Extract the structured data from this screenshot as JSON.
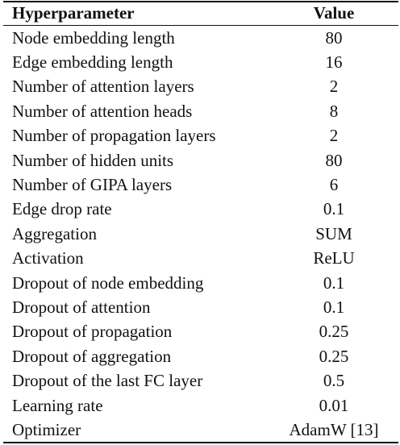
{
  "table": {
    "header": [
      "Hyperparameter",
      "Value"
    ],
    "rows": [
      [
        "Node embedding length",
        "80"
      ],
      [
        "Edge embedding length",
        "16"
      ],
      [
        "Number of attention layers",
        "2"
      ],
      [
        "Number of attention heads",
        "8"
      ],
      [
        "Number of propagation layers",
        "2"
      ],
      [
        "Number of hidden units",
        "80"
      ],
      [
        "Number of GIPA layers",
        "6"
      ],
      [
        "Edge drop rate",
        "0.1"
      ],
      [
        "Aggregation",
        "SUM"
      ],
      [
        "Activation",
        "ReLU"
      ],
      [
        "Dropout of node embedding",
        "0.1"
      ],
      [
        "Dropout of attention",
        "0.1"
      ],
      [
        "Dropout of propagation",
        "0.25"
      ],
      [
        "Dropout of aggregation",
        "0.25"
      ],
      [
        "Dropout of the last FC layer",
        "0.5"
      ],
      [
        "Learning rate",
        "0.01"
      ],
      [
        "Optimizer",
        "AdamW [13]"
      ]
    ]
  }
}
